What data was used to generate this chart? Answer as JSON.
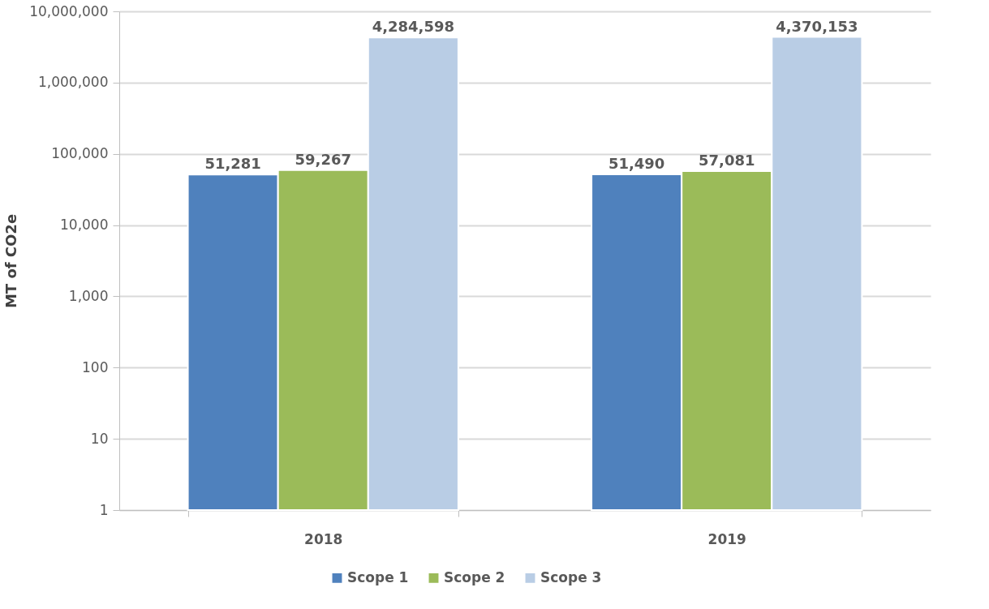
{
  "chart_data": {
    "type": "bar",
    "ylabel": "MT of CO2e",
    "categories": [
      "2018",
      "2019"
    ],
    "series": [
      {
        "name": "Scope 1",
        "color": "#4f81bd",
        "values": [
          51281,
          51490
        ],
        "value_labels": [
          "51,281",
          "51,490"
        ]
      },
      {
        "name": "Scope 2",
        "color": "#9bbb59",
        "values": [
          59267,
          57081
        ],
        "value_labels": [
          "59,267",
          "57,081"
        ]
      },
      {
        "name": "Scope 3",
        "color": "#b9cde5",
        "values": [
          4284598,
          4370153
        ],
        "value_labels": [
          "4,284,598",
          "4,370,153"
        ]
      }
    ],
    "log": true,
    "ylim": [
      1,
      10000000
    ],
    "yticks": [
      {
        "value": 1,
        "label": "1"
      },
      {
        "value": 10,
        "label": "10"
      },
      {
        "value": 100,
        "label": "100"
      },
      {
        "value": 1000,
        "label": "1,000"
      },
      {
        "value": 10000,
        "label": "10,000"
      },
      {
        "value": 100000,
        "label": "100,000"
      },
      {
        "value": 1000000,
        "label": "1,000,000"
      },
      {
        "value": 10000000,
        "label": "10,000,000"
      }
    ],
    "grid": "y",
    "legend": "bottom"
  }
}
